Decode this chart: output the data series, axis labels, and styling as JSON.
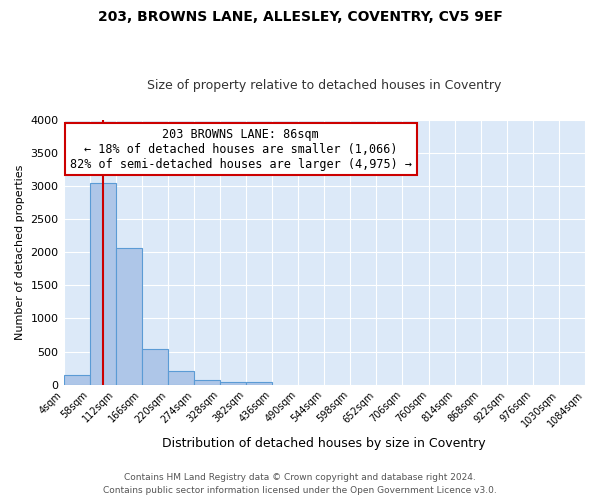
{
  "title": "203, BROWNS LANE, ALLESLEY, COVENTRY, CV5 9EF",
  "subtitle": "Size of property relative to detached houses in Coventry",
  "xlabel": "Distribution of detached houses by size in Coventry",
  "ylabel": "Number of detached properties",
  "bin_edges": [
    4,
    58,
    112,
    166,
    220,
    274,
    328,
    382,
    436,
    490,
    544,
    598,
    652,
    706,
    760,
    814,
    868,
    922,
    976,
    1030,
    1084
  ],
  "bar_heights": [
    150,
    3040,
    2060,
    545,
    205,
    68,
    45,
    40,
    0,
    0,
    0,
    0,
    0,
    0,
    0,
    0,
    0,
    0,
    0,
    0
  ],
  "bar_color": "#aec6e8",
  "bar_edge_color": "#5b9bd5",
  "property_size": 86,
  "red_line_color": "#cc0000",
  "annotation_title": "203 BROWNS LANE: 86sqm",
  "annotation_line1": "← 18% of detached houses are smaller (1,066)",
  "annotation_line2": "82% of semi-detached houses are larger (4,975) →",
  "annotation_box_color": "#ffffff",
  "annotation_box_edge": "#cc0000",
  "ylim": [
    0,
    4000
  ],
  "plot_bg_color": "#dce9f8",
  "fig_bg_color": "#ffffff",
  "footer_line1": "Contains HM Land Registry data © Crown copyright and database right 2024.",
  "footer_line2": "Contains public sector information licensed under the Open Government Licence v3.0."
}
